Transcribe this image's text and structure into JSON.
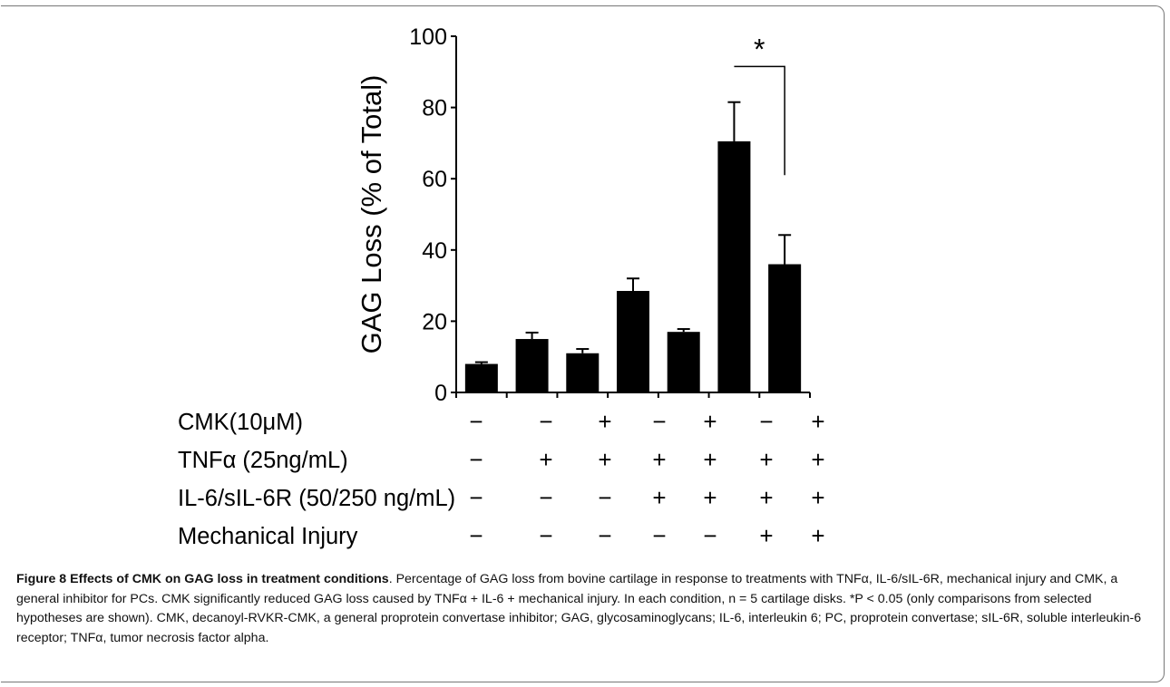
{
  "chart_data": {
    "type": "bar",
    "ylabel": "GAG Loss (% of Total)",
    "ylim": [
      0,
      100
    ],
    "yticks": [
      0,
      20,
      40,
      60,
      80,
      100
    ],
    "values": [
      8,
      15,
      11,
      28.5,
      17,
      70.5,
      36
    ],
    "errors": [
      0.5,
      1.8,
      1.2,
      3.5,
      0.8,
      11,
      8.2
    ],
    "bar_color": "#000000",
    "significance": {
      "from": 5,
      "to": 6,
      "label": "*"
    },
    "conditions": [
      {
        "label": "CMK(10μM)",
        "signs": [
          "−",
          "−",
          "+",
          "−",
          "+",
          "−",
          "+"
        ]
      },
      {
        "label": "TNFα (25ng/mL)",
        "signs": [
          "−",
          "+",
          "+",
          "+",
          "+",
          "+",
          "+"
        ]
      },
      {
        "label": "IL-6/sIL-6R (50/250 ng/mL)",
        "signs": [
          "−",
          "−",
          "−",
          "+",
          "+",
          "+",
          "+"
        ]
      },
      {
        "label": "Mechanical Injury",
        "signs": [
          "−",
          "−",
          "−",
          "−",
          "−",
          "+",
          "+"
        ]
      }
    ]
  },
  "caption": {
    "title": "Figure 8 Effects of CMK on GAG loss in treatment conditions",
    "text": ". Percentage of GAG loss from bovine cartilage in response to treatments with TNFα, IL-6/sIL-6R, mechanical injury and CMK, a general inhibitor for PCs. CMK significantly reduced GAG loss caused by TNFα + IL-6 + mechanical injury. In each condition, n = 5 cartilage disks. *P < 0.05 (only comparisons from selected hypotheses are shown). CMK, decanoyl-RVKR-CMK, a general proprotein convertase inhibitor; GAG, glycosaminoglycans; IL-6, interleukin 6; PC, proprotein convertase; sIL-6R, soluble interleukin-6 receptor; TNFα, tumor necrosis factor alpha."
  }
}
